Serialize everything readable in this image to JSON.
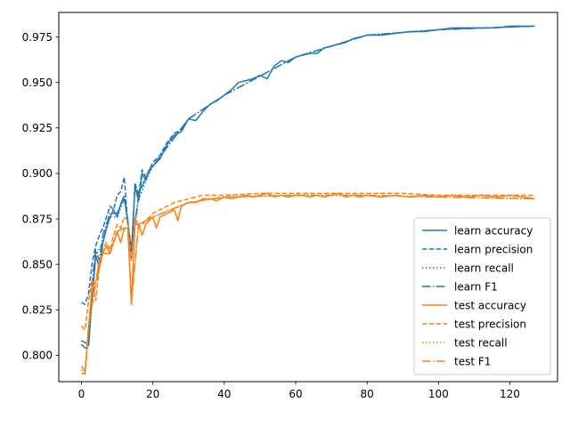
{
  "chart_data": {
    "type": "line",
    "title": "",
    "xlabel": "",
    "ylabel": "",
    "xlim": [
      -6.35,
      133.35
    ],
    "ylim": [
      0.7855,
      0.9885
    ],
    "xticks": [
      0,
      20,
      40,
      60,
      80,
      100,
      120
    ],
    "xtick_labels": [
      "0",
      "20",
      "40",
      "60",
      "80",
      "100",
      "120"
    ],
    "yticks": [
      0.8,
      0.825,
      0.85,
      0.875,
      0.9,
      0.925,
      0.95,
      0.975
    ],
    "ytick_labels": [
      "0.800",
      "0.825",
      "0.850",
      "0.875",
      "0.900",
      "0.925",
      "0.950",
      "0.975"
    ],
    "grid": false,
    "legend_position": "lower right",
    "colors": {
      "learn": "#1f77b4",
      "test": "#ff7f0e"
    },
    "series": [
      {
        "name": "learn accuracy",
        "color": "#1f77b4",
        "style": "solid",
        "x": [
          0,
          2,
          3,
          4,
          5,
          6,
          7,
          8,
          9,
          10,
          11,
          12,
          13,
          14,
          15,
          16,
          17,
          18,
          19,
          20,
          22,
          24,
          26,
          28,
          30,
          32,
          34,
          36,
          38,
          40,
          42,
          44,
          46,
          48,
          50,
          52,
          54,
          56,
          58,
          60,
          62,
          64,
          66,
          68,
          70,
          72,
          74,
          76,
          78,
          80,
          84,
          88,
          92,
          96,
          100,
          104,
          108,
          112,
          116,
          120,
          124,
          127
        ],
        "y": [
          0.808,
          0.806,
          0.832,
          0.855,
          0.848,
          0.862,
          0.87,
          0.876,
          0.88,
          0.876,
          0.883,
          0.886,
          0.874,
          0.857,
          0.893,
          0.885,
          0.9,
          0.896,
          0.902,
          0.904,
          0.908,
          0.916,
          0.921,
          0.923,
          0.93,
          0.929,
          0.934,
          0.938,
          0.94,
          0.943,
          0.946,
          0.95,
          0.951,
          0.952,
          0.954,
          0.952,
          0.959,
          0.962,
          0.961,
          0.964,
          0.965,
          0.966,
          0.966,
          0.969,
          0.97,
          0.971,
          0.972,
          0.974,
          0.975,
          0.976,
          0.976,
          0.977,
          0.978,
          0.978,
          0.979,
          0.98,
          0.98,
          0.98,
          0.98,
          0.981,
          0.981,
          0.981
        ]
      },
      {
        "name": "learn precision",
        "color": "#1f77b4",
        "style": "dashed",
        "x": [
          0,
          1,
          2,
          3,
          4,
          5,
          6,
          7,
          8,
          9,
          10,
          11,
          12,
          13,
          14,
          15,
          16,
          17,
          18,
          20,
          22,
          24,
          26,
          28,
          30
        ],
        "y": [
          0.829,
          0.828,
          0.834,
          0.851,
          0.86,
          0.866,
          0.87,
          0.876,
          0.882,
          0.88,
          0.888,
          0.89,
          0.898,
          0.871,
          0.852,
          0.895,
          0.888,
          0.902,
          0.898,
          0.906,
          0.91,
          0.917,
          0.922,
          0.924,
          0.93
        ]
      },
      {
        "name": "learn recall",
        "color": "#1f77b4",
        "style": "dotted",
        "x": [
          0,
          2,
          4,
          6,
          8,
          10,
          12,
          13,
          14,
          16,
          18,
          20,
          30,
          40,
          60,
          80,
          100,
          127
        ],
        "y": [
          0.808,
          0.806,
          0.855,
          0.862,
          0.876,
          0.876,
          0.886,
          0.874,
          0.857,
          0.885,
          0.896,
          0.904,
          0.93,
          0.943,
          0.964,
          0.976,
          0.979,
          0.981
        ]
      },
      {
        "name": "learn F1",
        "color": "#1f77b4",
        "style": "dashdot",
        "x": [
          0,
          1,
          2,
          3,
          4,
          5,
          6,
          8,
          10,
          12,
          13,
          14,
          16,
          18,
          20,
          30,
          40,
          60,
          80,
          100,
          127
        ],
        "y": [
          0.806,
          0.804,
          0.804,
          0.84,
          0.858,
          0.852,
          0.866,
          0.878,
          0.878,
          0.888,
          0.872,
          0.858,
          0.888,
          0.898,
          0.904,
          0.93,
          0.943,
          0.964,
          0.976,
          0.979,
          0.981
        ]
      },
      {
        "name": "test accuracy",
        "color": "#ff7f0e",
        "style": "solid",
        "x": [
          0,
          1,
          2,
          3,
          4,
          5,
          6,
          7,
          8,
          9,
          10,
          11,
          12,
          13,
          14,
          15,
          16,
          17,
          18,
          19,
          20,
          21,
          22,
          24,
          26,
          27,
          28,
          30,
          32,
          34,
          36,
          38,
          40,
          42,
          44,
          46,
          48,
          50,
          52,
          54,
          56,
          58,
          60,
          62,
          64,
          66,
          68,
          70,
          72,
          74,
          76,
          78,
          80,
          84,
          88,
          92,
          96,
          100,
          104,
          108,
          112,
          116,
          120,
          124,
          127
        ],
        "y": [
          0.79,
          0.79,
          0.815,
          0.838,
          0.84,
          0.852,
          0.856,
          0.86,
          0.856,
          0.862,
          0.868,
          0.862,
          0.87,
          0.87,
          0.828,
          0.872,
          0.872,
          0.866,
          0.872,
          0.874,
          0.876,
          0.87,
          0.876,
          0.878,
          0.88,
          0.874,
          0.882,
          0.884,
          0.884,
          0.886,
          0.886,
          0.885,
          0.887,
          0.886,
          0.887,
          0.888,
          0.887,
          0.888,
          0.889,
          0.887,
          0.888,
          0.887,
          0.888,
          0.888,
          0.887,
          0.888,
          0.887,
          0.888,
          0.889,
          0.887,
          0.888,
          0.887,
          0.888,
          0.887,
          0.888,
          0.887,
          0.888,
          0.887,
          0.888,
          0.887,
          0.888,
          0.887,
          0.888,
          0.887,
          0.886
        ]
      },
      {
        "name": "test precision",
        "color": "#ff7f0e",
        "style": "dashed",
        "x": [
          0,
          1,
          2,
          3,
          4,
          5,
          6,
          7,
          8,
          9,
          10,
          11,
          12,
          13,
          14,
          15,
          16,
          18,
          20,
          22,
          24,
          26,
          28,
          30,
          34,
          40,
          50,
          60,
          70,
          80,
          90,
          100,
          110,
          120,
          127
        ],
        "y": [
          0.816,
          0.814,
          0.83,
          0.842,
          0.83,
          0.848,
          0.858,
          0.862,
          0.858,
          0.866,
          0.872,
          0.87,
          0.876,
          0.874,
          0.852,
          0.876,
          0.87,
          0.874,
          0.878,
          0.88,
          0.882,
          0.884,
          0.885,
          0.886,
          0.888,
          0.888,
          0.889,
          0.889,
          0.889,
          0.889,
          0.889,
          0.888,
          0.888,
          0.888,
          0.888
        ]
      },
      {
        "name": "test recall",
        "color": "#ff7f0e",
        "style": "dotted",
        "x": [
          0,
          1,
          2,
          4,
          6,
          8,
          10,
          12,
          13,
          14,
          16,
          20,
          30,
          40,
          60,
          80,
          100,
          127
        ],
        "y": [
          0.792,
          0.789,
          0.815,
          0.84,
          0.856,
          0.856,
          0.868,
          0.87,
          0.87,
          0.828,
          0.872,
          0.876,
          0.884,
          0.887,
          0.888,
          0.888,
          0.887,
          0.886
        ]
      },
      {
        "name": "test F1",
        "color": "#ff7f0e",
        "style": "dashdot",
        "x": [
          0,
          1,
          2,
          4,
          6,
          8,
          10,
          12,
          13,
          14,
          16,
          20,
          30,
          40,
          60,
          80,
          100,
          127
        ],
        "y": [
          0.794,
          0.791,
          0.816,
          0.84,
          0.856,
          0.856,
          0.868,
          0.87,
          0.87,
          0.83,
          0.872,
          0.876,
          0.884,
          0.887,
          0.888,
          0.888,
          0.887,
          0.886
        ]
      }
    ]
  }
}
